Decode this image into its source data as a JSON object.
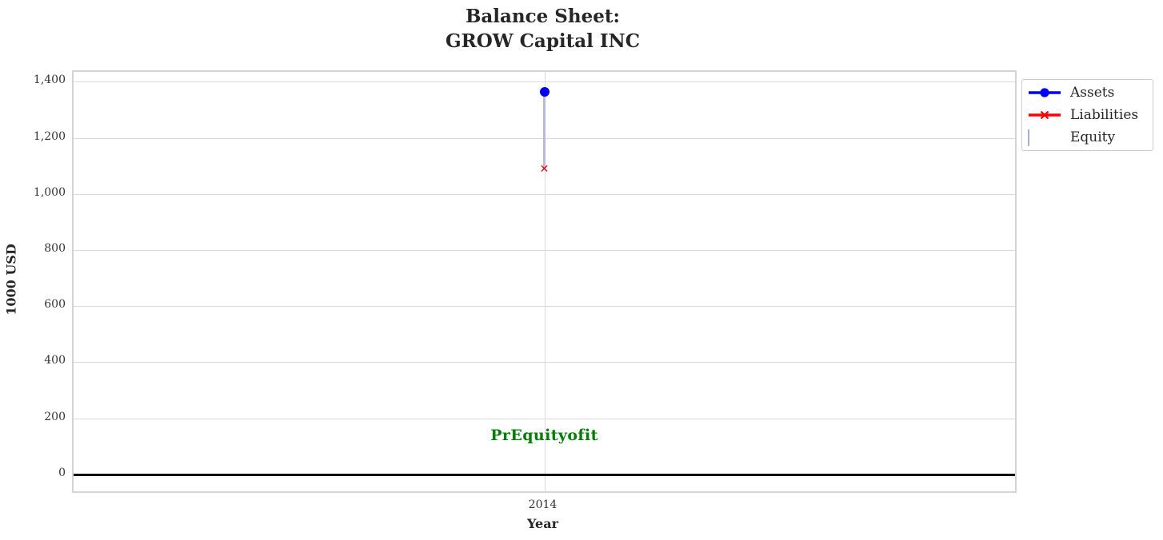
{
  "header": {
    "title_line1": "Balance Sheet:",
    "title_line2": "GROW Capital INC"
  },
  "axes": {
    "ylabel": "1000 USD",
    "xlabel": "Year"
  },
  "legend": {
    "items": [
      {
        "label": "Assets",
        "marker": "line-circle",
        "color": "#0000ff"
      },
      {
        "label": "Liabilities",
        "marker": "line-x",
        "color": "#ff0000"
      },
      {
        "label": "Equity",
        "marker": "hatched-patch",
        "fill": "#ccccf5",
        "hatch_color": "#9191dd",
        "edge_color": "#aaaae8"
      }
    ]
  },
  "chart_data": {
    "type": "line",
    "title": "Balance Sheet: GROW Capital INC",
    "xlabel": "Year",
    "ylabel": "1000 USD",
    "categories": [
      "2014"
    ],
    "series": [
      {
        "name": "Assets",
        "type": "line",
        "marker": "circle",
        "color": "#0000ff",
        "values": [
          1365
        ]
      },
      {
        "name": "Liabilities",
        "type": "line",
        "marker": "x",
        "color": "#ff0000",
        "values": [
          1088
        ]
      },
      {
        "name": "Equity",
        "type": "bar",
        "hatch": "///",
        "color": "#b9b9e9",
        "values": [
          277
        ],
        "stacked_on": "Liabilities"
      }
    ],
    "yticks": [
      0,
      200,
      400,
      600,
      800,
      1000,
      1200,
      1400
    ],
    "ytick_labels": [
      "0",
      "200",
      "400",
      "600",
      "800",
      "1,000",
      "1,200",
      "1,400"
    ],
    "ylim": [
      -60,
      1435
    ],
    "grid": true,
    "zero_line": true,
    "legend_position": "upper right, outside axes",
    "annotations": [
      {
        "text": "PrEquityofit",
        "x": "2014",
        "y": 139,
        "color": "#008000",
        "bold": true
      }
    ]
  }
}
